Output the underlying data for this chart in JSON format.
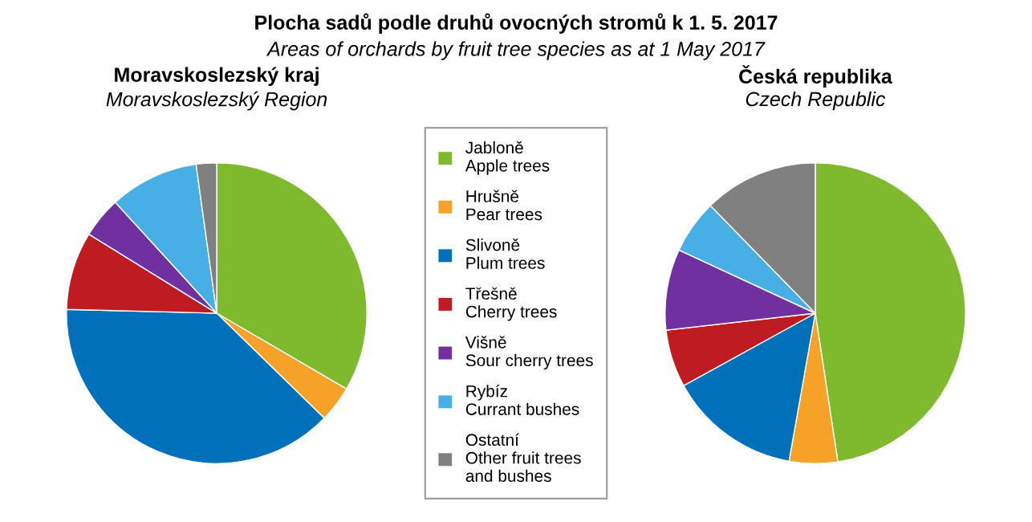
{
  "chart_data": [
    {
      "type": "pie",
      "title": "Moravskoslezský kraj",
      "subtitle": "Moravskoslezský Region",
      "annotations": [
        "Plocha sadů podle druhů ovocných stromů k 1. 5. 2017",
        "Areas of orchards by fruit tree species as at 1 May 2017"
      ],
      "categories": [
        "Jabloně\nApple trees",
        "Hrušně\nPear trees",
        "Slivoně\nPlum trees",
        "Třešně\nCherry trees",
        "Višně\nSour cherry trees",
        "Rybíz\nCurrant bushes",
        "Ostatní\nOther fruit trees\nand bushes"
      ],
      "values": [
        33.4,
        3.9,
        38.1,
        8.4,
        4.4,
        9.6,
        2.2
      ],
      "colors": [
        "#7fba2e",
        "#f6a128",
        "#0070bb",
        "#be1b23",
        "#7030a0",
        "#48aee6",
        "#808080"
      ],
      "legend": "right"
    },
    {
      "type": "pie",
      "title": "Česká republika",
      "subtitle": "Czech Republic",
      "categories": [
        null,
        null,
        null,
        null,
        null,
        null,
        null
      ],
      "values": [
        47.6,
        5.2,
        14.2,
        6.2,
        8.7,
        5.8,
        12.3
      ],
      "colors": [
        "#7fba2e",
        "#f6a128",
        "#0070bb",
        "#be1b23",
        "#7030a0",
        "#48aee6",
        "#808080"
      ]
    }
  ]
}
